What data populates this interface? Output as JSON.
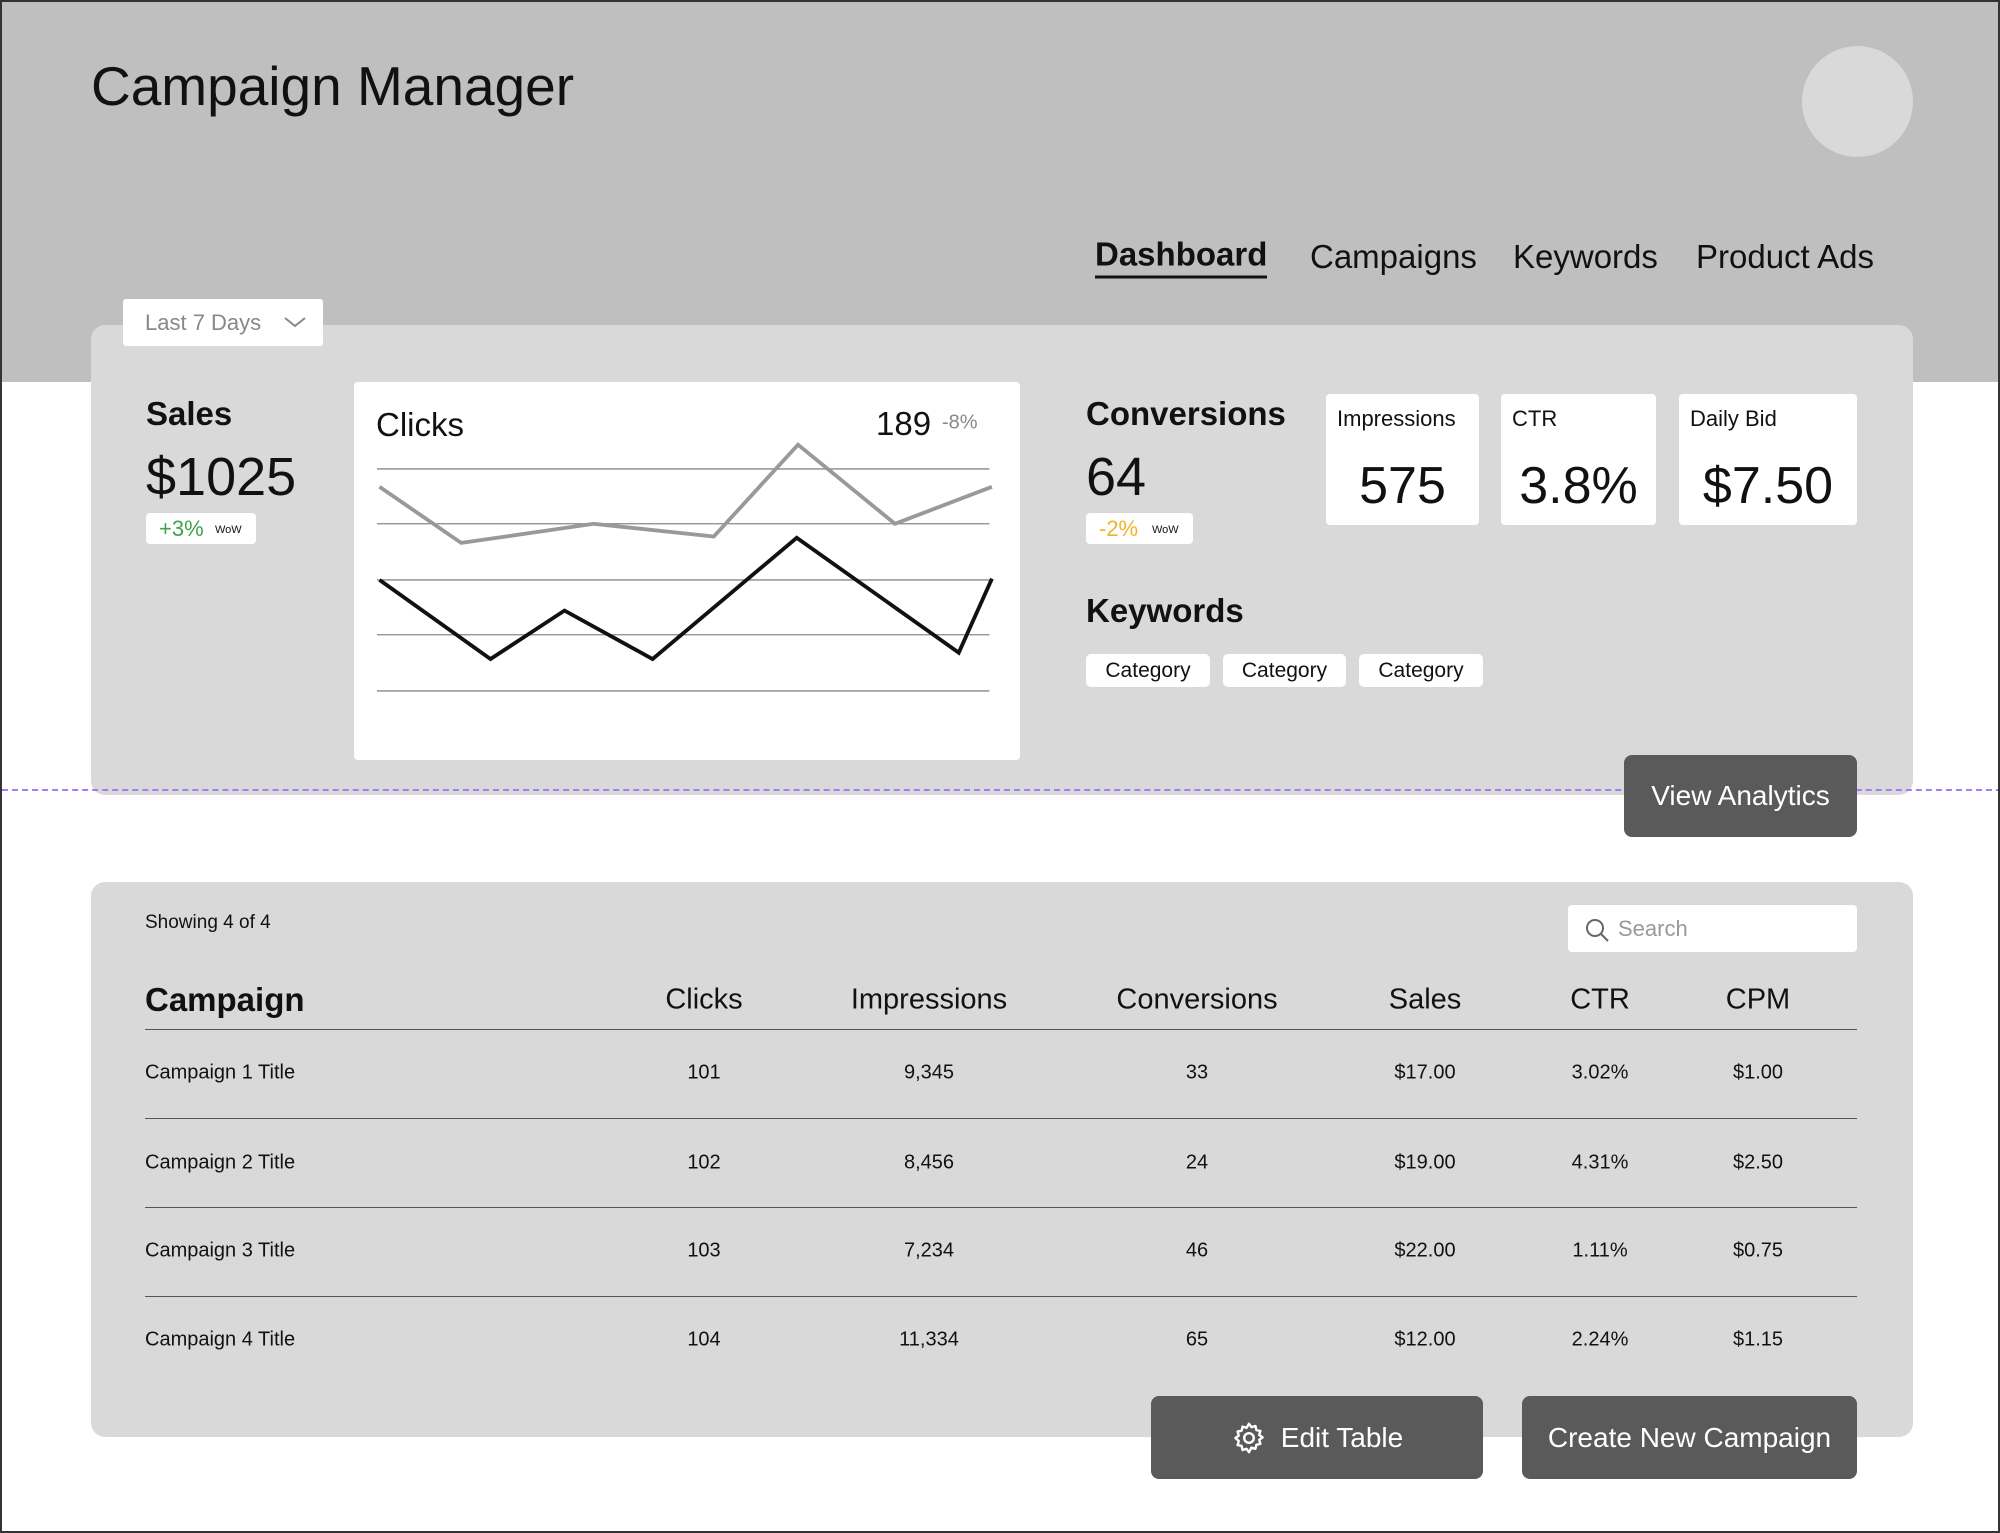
{
  "header": {
    "title": "Campaign Manager",
    "nav": [
      "Dashboard",
      "Campaigns",
      "Keywords",
      "Product Ads"
    ]
  },
  "summary": {
    "range": "Last 7 Days",
    "sales": {
      "label": "Sales",
      "value": "$1025",
      "change": "+3%",
      "change_unit": "WoW"
    },
    "clicks": {
      "label": "Clicks",
      "value": "189",
      "change": "-8%"
    },
    "conversions": {
      "label": "Conversions",
      "value": "64",
      "change": "-2%",
      "change_unit": "WoW"
    },
    "stats": [
      {
        "label": "Impressions",
        "value": "575"
      },
      {
        "label": "CTR",
        "value": "3.8%"
      },
      {
        "label": "Daily Bid",
        "value": "$7.50"
      }
    ],
    "keywords": {
      "label": "Keywords",
      "chips": [
        "Category",
        "Category",
        "Category"
      ]
    },
    "button": "View Analytics"
  },
  "table": {
    "showing": "Showing 4 of 4",
    "search": "Search",
    "columns": [
      "Campaign",
      "Clicks",
      "Impressions",
      "Conversions",
      "Sales",
      "CTR",
      "CPM"
    ],
    "rows": [
      [
        "Campaign 1 Title",
        "101",
        "9,345",
        "33",
        "$17.00",
        "3.02%",
        "$1.00"
      ],
      [
        "Campaign 2 Title",
        "102",
        "8,456",
        "24",
        "$19.00",
        "4.31%",
        "$2.50"
      ],
      [
        "Campaign 3 Title",
        "103",
        "7,234",
        "46",
        "$22.00",
        "1.11%",
        "$0.75"
      ],
      [
        "Campaign 4 Title",
        "104",
        "11,334",
        "65",
        "$12.00",
        "2.24%",
        "$1.15"
      ]
    ]
  },
  "buttons": [
    "Edit Table",
    "Create New Campaign"
  ]
}
